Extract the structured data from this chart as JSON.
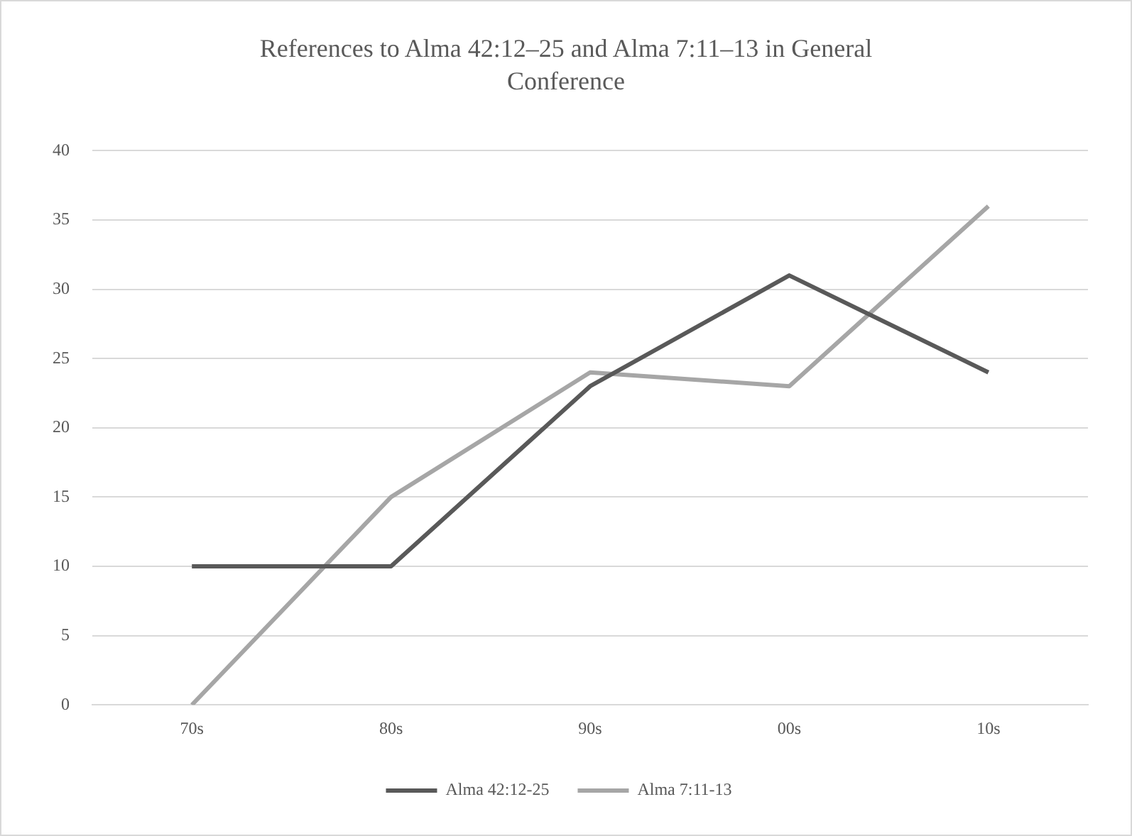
{
  "chart_data": {
    "type": "line",
    "title": "References to Alma 42:12–25 and Alma 7:11–13 in General Conference",
    "categories": [
      "70s",
      "80s",
      "90s",
      "00s",
      "10s"
    ],
    "series": [
      {
        "name": "Alma 42:12-25",
        "color": "#595959",
        "values": [
          10,
          10,
          23,
          31,
          24
        ]
      },
      {
        "name": "Alma 7:11-13",
        "color": "#a6a6a6",
        "values": [
          0,
          15,
          24,
          23,
          36
        ]
      }
    ],
    "ylim": [
      0,
      40
    ],
    "yticks": [
      0,
      5,
      10,
      15,
      20,
      25,
      30,
      35,
      40
    ],
    "grid": "y",
    "legend": "bottom",
    "marker": "none",
    "line_style": "solid"
  }
}
